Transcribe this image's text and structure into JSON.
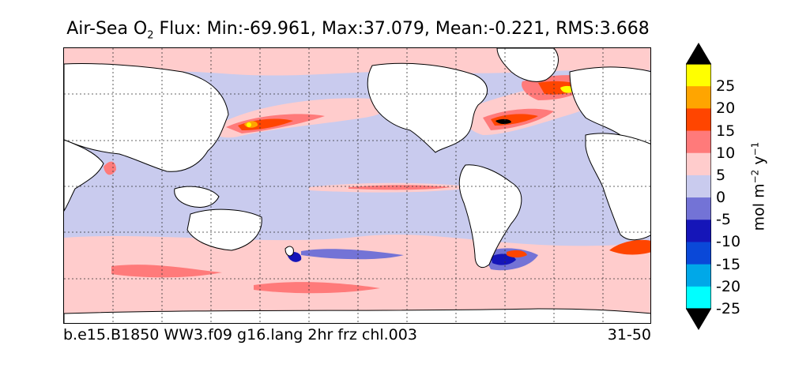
{
  "title": {
    "prefix": "Air-Sea O",
    "subscript": "2",
    "suffix": " Flux: Min:-69.961, Max:37.079, Mean:-0.221, RMS:3.668"
  },
  "caption": {
    "run_name": "b.e15.B1850 WW3.f09 g16.lang 2hr frz chl.003",
    "years": "31-50"
  },
  "colorbar": {
    "label_base": "mol m",
    "label_exp1": "−2",
    "label_mid": " y",
    "label_exp2": "−1",
    "ticks": [
      "25",
      "20",
      "15",
      "10",
      "5",
      "0",
      "-5",
      "-10",
      "-15",
      "-20",
      "-25"
    ],
    "levels": [
      {
        "range": "20 to 25+",
        "color": "#ffff00"
      },
      {
        "range": "15 to 20",
        "color": "#ffa500"
      },
      {
        "range": "10 to 15",
        "color": "#ff4500"
      },
      {
        "range": "5 to 10",
        "color": "#ff7a7a"
      },
      {
        "range": "0 to 5",
        "color": "#ffcccc"
      },
      {
        "range": "-5 to 0",
        "color": "#c9cbee"
      },
      {
        "range": "-10 to -5",
        "color": "#7373d6"
      },
      {
        "range": "-15 to -10",
        "color": "#1515b8"
      },
      {
        "range": "-20 to -15",
        "color": "#0a48d8"
      },
      {
        "range": "-25 to -20",
        "color": "#00a8e8"
      },
      {
        "range": "< -25",
        "color": "#00ffff"
      }
    ],
    "extend_high_color": "#000000",
    "extend_low_color": "#000000"
  },
  "map": {
    "land_color": "#ffffff",
    "ocean_background_color": "#c9cbee",
    "gridlines": "dotted",
    "projection": "global lat-lon"
  }
}
